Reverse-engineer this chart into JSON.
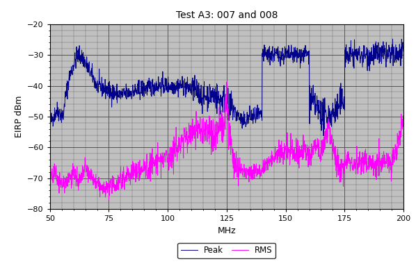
{
  "title": "Test A3: 007 and 008",
  "xlabel": "MHz",
  "ylabel": "EIRP dBm",
  "xlim": [
    50,
    200
  ],
  "ylim": [
    -80,
    -20
  ],
  "yticks": [
    -80,
    -70,
    -60,
    -50,
    -40,
    -30,
    -20
  ],
  "xticks": [
    50,
    75,
    100,
    125,
    150,
    175,
    200
  ],
  "peak_color": "#00008B",
  "rms_color": "#FF00FF",
  "bg_color": "#C0C0C0",
  "legend_labels": [
    "Peak",
    "RMS"
  ],
  "title_fontsize": 10,
  "axis_label_fontsize": 9,
  "tick_fontsize": 8,
  "grid_color": "#888888",
  "minor_grid_color": "#999999"
}
